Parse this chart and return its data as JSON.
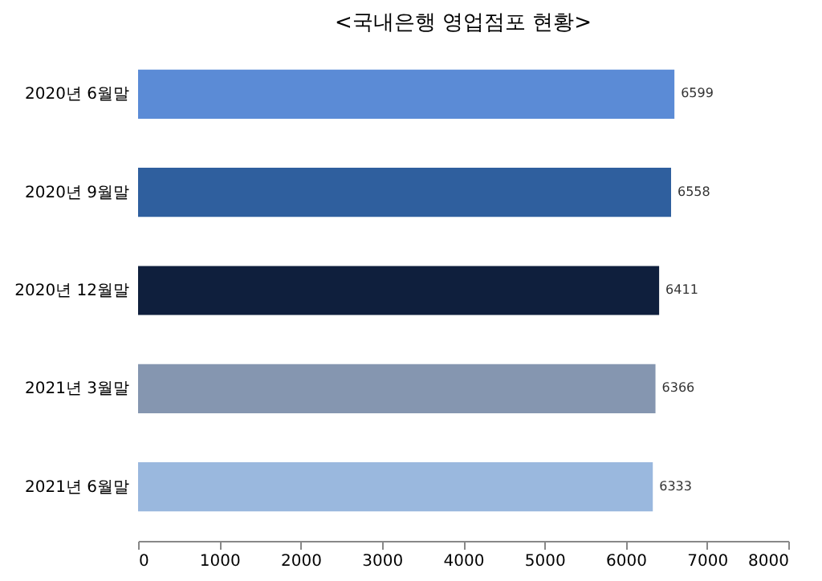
{
  "chart_data": {
    "type": "bar",
    "orientation": "horizontal",
    "title": "<국내은행 영업점포 현황>",
    "categories": [
      "2020년 6월말",
      "2020년 9월말",
      "2020년 12월말",
      "2021년 3월말",
      "2021년 6월말"
    ],
    "values": [
      6599,
      6558,
      6411,
      6366,
      6333
    ],
    "colors": [
      "#5b8bd6",
      "#2f5f9e",
      "#0f1f3d",
      "#8596b0",
      "#9ab8de"
    ],
    "xlim": [
      0,
      8000
    ],
    "xticks": [
      0,
      1000,
      2000,
      3000,
      4000,
      5000,
      6000,
      7000,
      8000
    ],
    "data_labels": true,
    "grid": false
  }
}
